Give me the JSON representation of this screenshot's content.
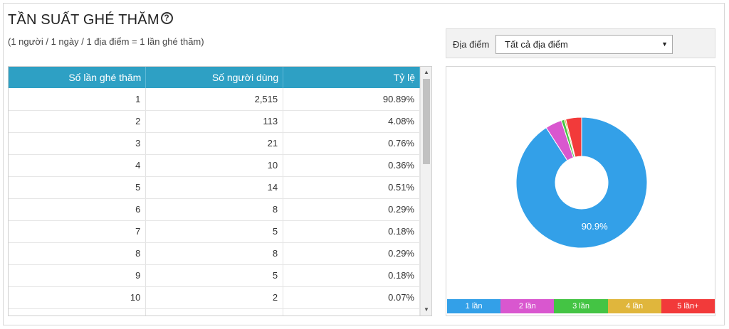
{
  "header": {
    "title": "TẦN SUẤT GHÉ THĂM",
    "help_icon": "?",
    "subtitle": "(1 người / 1 ngày / 1 địa điểm = 1 lần ghé thăm)"
  },
  "filter": {
    "label": "Địa điểm",
    "selected": "Tất cả địa điểm"
  },
  "table": {
    "headers": [
      "Số lần ghé thăm",
      "Số người dùng",
      "Tỷ lệ"
    ],
    "rows": [
      [
        "1",
        "2,515",
        "90.89%"
      ],
      [
        "2",
        "113",
        "4.08%"
      ],
      [
        "3",
        "21",
        "0.76%"
      ],
      [
        "4",
        "10",
        "0.36%"
      ],
      [
        "5",
        "14",
        "0.51%"
      ],
      [
        "6",
        "8",
        "0.29%"
      ],
      [
        "7",
        "5",
        "0.18%"
      ],
      [
        "8",
        "8",
        "0.29%"
      ],
      [
        "9",
        "5",
        "0.18%"
      ],
      [
        "10",
        "2",
        "0.07%"
      ],
      [
        "",
        "",
        ""
      ]
    ]
  },
  "chart_data": {
    "type": "pie",
    "style": "donut",
    "categories": [
      "1 lần",
      "2 lần",
      "3 lần",
      "4 lần",
      "5 lần+"
    ],
    "values": [
      90.89,
      4.08,
      0.76,
      0.36,
      3.91
    ],
    "colors": [
      "#33a0e8",
      "#d957cf",
      "#44c444",
      "#e0b63c",
      "#f23a3a"
    ],
    "data_labels": [
      "90.9%",
      "",
      "",
      "",
      ""
    ]
  }
}
